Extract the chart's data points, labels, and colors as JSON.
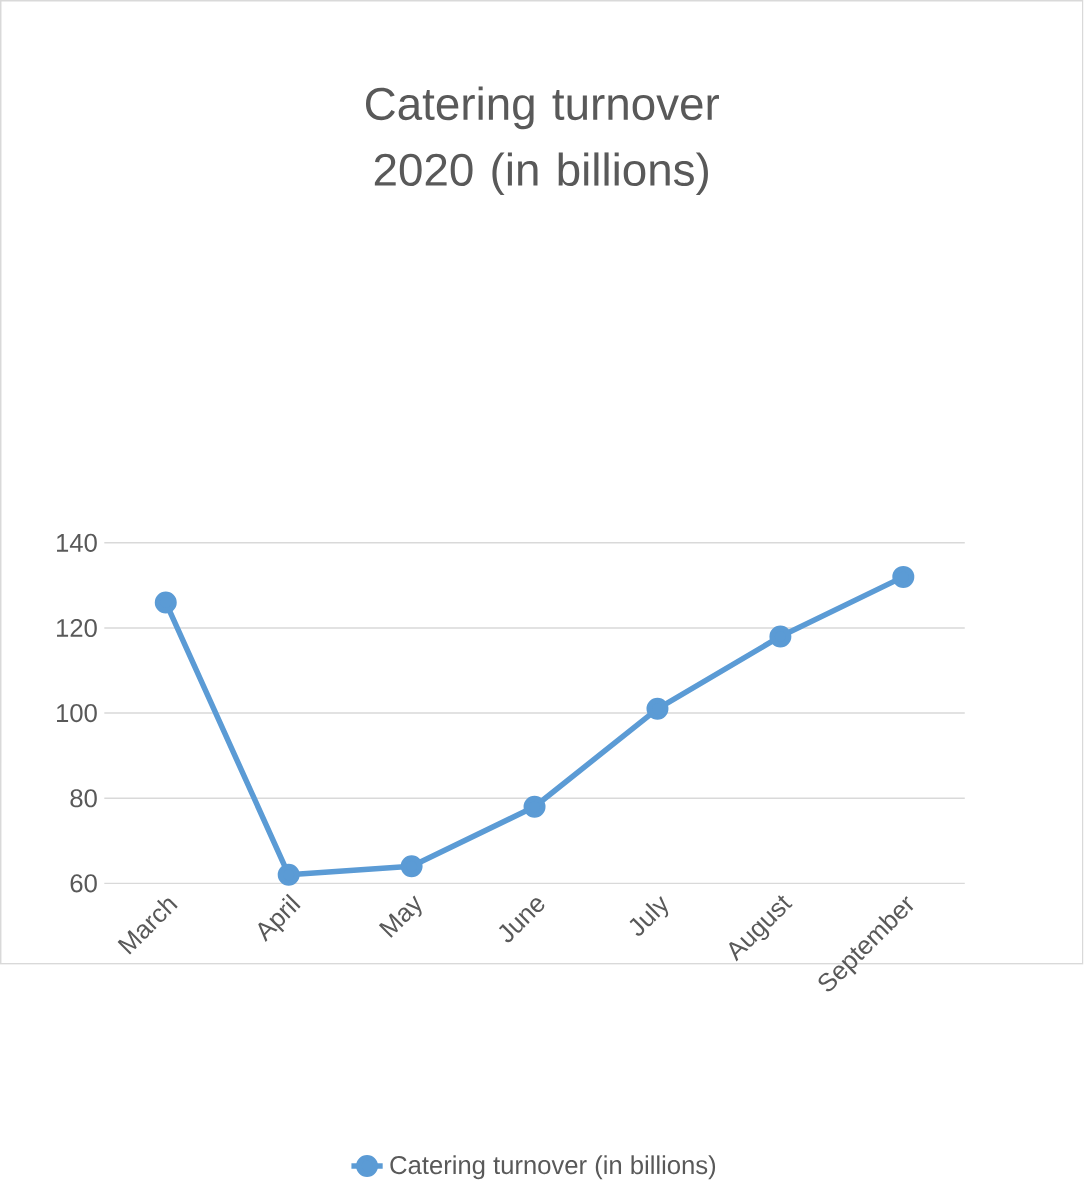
{
  "chart_data": {
    "type": "line",
    "title": "Catering turnover 2020 (in billions)",
    "categories": [
      "March",
      "April",
      "May",
      "June",
      "July",
      "August",
      "September"
    ],
    "series": [
      {
        "name": "Catering turnover (in billions)",
        "color": "#5b9bd5",
        "values": [
          126,
          62,
          64,
          78,
          101,
          118,
          132
        ]
      }
    ],
    "ylim": [
      60,
      140
    ],
    "yticks": [
      60,
      80,
      100,
      120,
      140
    ],
    "grid": "y",
    "legend": "bottom",
    "marker": "circle",
    "line_style": "solid"
  }
}
